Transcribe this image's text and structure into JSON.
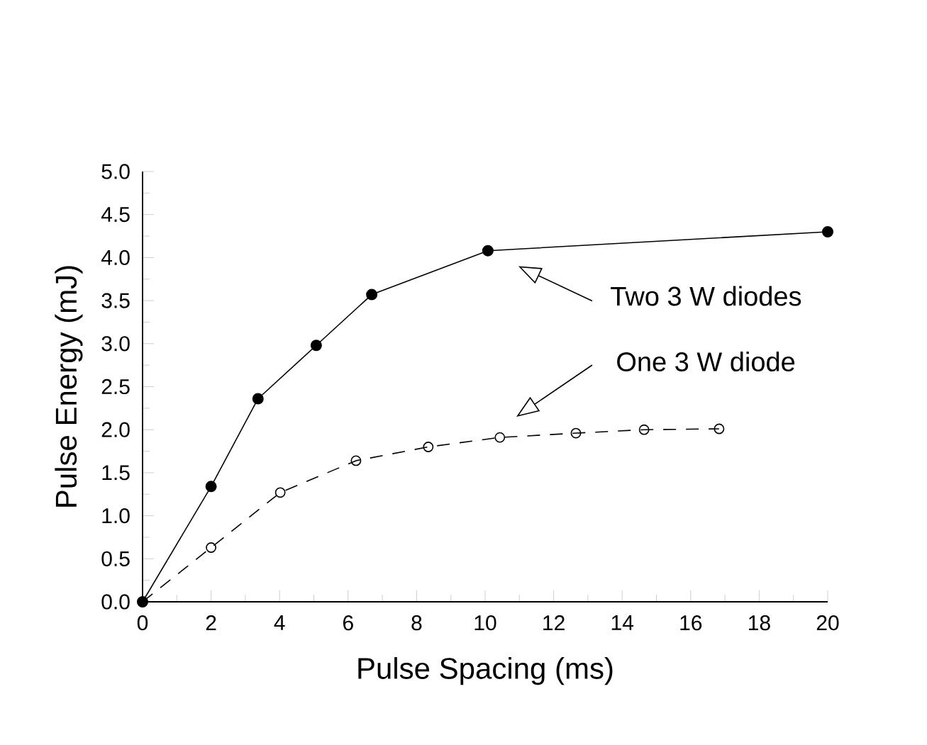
{
  "chart_data": {
    "type": "line",
    "xlabel": "Pulse Spacing (ms)",
    "ylabel": "Pulse Energy (mJ)",
    "xlim": [
      0,
      20
    ],
    "ylim": [
      0,
      5
    ],
    "xticks": [
      0,
      2,
      4,
      6,
      8,
      10,
      12,
      14,
      16,
      18,
      20
    ],
    "yticks": [
      {
        "value": 0,
        "label": "0.0"
      },
      {
        "value": 0.5,
        "label": "0.5"
      },
      {
        "value": 1,
        "label": "1.0"
      },
      {
        "value": 1.5,
        "label": "1.5"
      },
      {
        "value": 2,
        "label": "2.0"
      },
      {
        "value": 2.5,
        "label": "2.5"
      },
      {
        "value": 3,
        "label": "3.0"
      },
      {
        "value": 3.5,
        "label": "3.5"
      },
      {
        "value": 4,
        "label": "4.0"
      },
      {
        "value": 4.5,
        "label": "4.5"
      },
      {
        "value": 5,
        "label": "5.0"
      }
    ],
    "marker": "circle",
    "grid": false,
    "series": [
      {
        "color": "#000000",
        "line_style": "solid",
        "x": [
          0,
          2,
          3.37,
          5.07,
          6.69,
          10.08,
          20
        ],
        "values": [
          0,
          1.34,
          2.36,
          2.98,
          3.57,
          4.08,
          4.3
        ]
      },
      {
        "color": "#000000",
        "line_style": "dashed",
        "x": [
          0,
          2,
          4.02,
          6.23,
          8.34,
          10.43,
          12.65,
          14.64,
          16.83
        ],
        "values": [
          0,
          0.63,
          1.27,
          1.64,
          1.8,
          1.91,
          1.96,
          2.0,
          2.01
        ]
      }
    ],
    "annotations": [
      "Two 3 W diodes",
      "One 3 W diode"
    ]
  }
}
